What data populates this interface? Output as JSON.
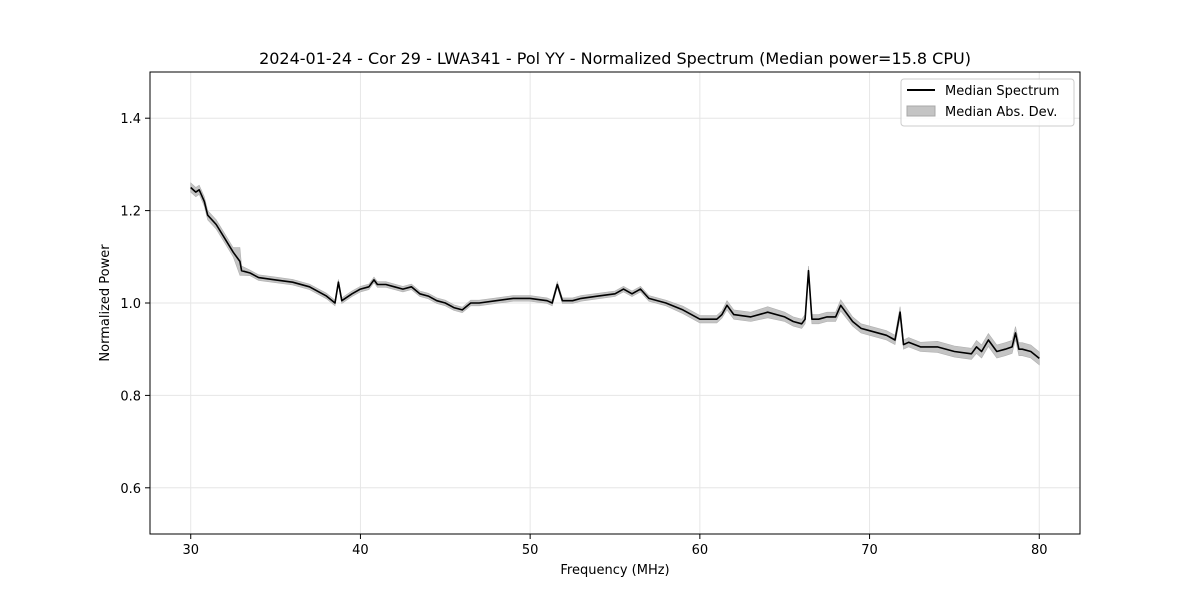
{
  "chart_data": {
    "type": "line",
    "title": "2024-01-24 - Cor 29 - LWA341 - Pol YY - Normalized Spectrum (Median power=15.8 CPU)",
    "xlabel": "Frequency (MHz)",
    "ylabel": "Normalized Power",
    "xlim": [
      27.6,
      82.4
    ],
    "ylim": [
      0.5,
      1.5
    ],
    "xticks": [
      30,
      40,
      50,
      60,
      70,
      80
    ],
    "yticks": [
      0.6,
      0.8,
      1.0,
      1.2,
      1.4
    ],
    "xtick_labels": [
      "30",
      "40",
      "50",
      "60",
      "70",
      "80"
    ],
    "ytick_labels": [
      "0.6",
      "0.8",
      "1.0",
      "1.2",
      "1.4"
    ],
    "grid": true,
    "legend": {
      "placement": "top-right",
      "entries": [
        {
          "label": "Median Spectrum",
          "kind": "line",
          "color": "#000000"
        },
        {
          "label": "Median Abs. Dev.",
          "kind": "band",
          "color": "#c4c4c4"
        }
      ]
    },
    "series": [
      {
        "name": "Median Spectrum",
        "color": "#000000",
        "x": [
          30.0,
          30.3,
          30.5,
          30.8,
          31.0,
          31.5,
          32.0,
          32.5,
          32.9,
          33.0,
          33.5,
          34.0,
          35.0,
          36.0,
          37.0,
          38.0,
          38.5,
          38.7,
          38.9,
          39.5,
          40.0,
          40.5,
          40.8,
          41.0,
          41.5,
          42.0,
          42.5,
          43.0,
          43.5,
          44.0,
          44.5,
          45.0,
          45.5,
          46.0,
          46.5,
          47.0,
          48.0,
          49.0,
          50.0,
          51.0,
          51.3,
          51.6,
          51.9,
          52.5,
          53.0,
          54.0,
          55.0,
          55.5,
          56.0,
          56.5,
          57.0,
          58.0,
          59.0,
          60.0,
          61.0,
          61.3,
          61.6,
          62.0,
          63.0,
          64.0,
          65.0,
          65.5,
          66.0,
          66.2,
          66.4,
          66.6,
          67.0,
          67.5,
          68.0,
          68.3,
          69.0,
          69.5,
          70.0,
          71.0,
          71.5,
          71.8,
          72.0,
          72.3,
          73.0,
          74.0,
          75.0,
          76.0,
          76.3,
          76.6,
          77.0,
          77.5,
          78.0,
          78.4,
          78.6,
          78.8,
          79.0,
          79.5,
          80.0
        ],
        "y": [
          1.25,
          1.24,
          1.245,
          1.22,
          1.19,
          1.17,
          1.14,
          1.11,
          1.09,
          1.07,
          1.065,
          1.055,
          1.05,
          1.045,
          1.035,
          1.015,
          1.0,
          1.045,
          1.005,
          1.02,
          1.03,
          1.035,
          1.05,
          1.04,
          1.04,
          1.035,
          1.03,
          1.035,
          1.02,
          1.015,
          1.005,
          1.0,
          0.99,
          0.985,
          1.0,
          1.0,
          1.005,
          1.01,
          1.01,
          1.005,
          1.0,
          1.04,
          1.005,
          1.005,
          1.01,
          1.015,
          1.02,
          1.03,
          1.02,
          1.03,
          1.01,
          1.0,
          0.985,
          0.965,
          0.965,
          0.975,
          0.995,
          0.975,
          0.97,
          0.98,
          0.97,
          0.96,
          0.955,
          0.965,
          1.07,
          0.965,
          0.965,
          0.97,
          0.97,
          0.995,
          0.96,
          0.945,
          0.94,
          0.93,
          0.92,
          0.98,
          0.91,
          0.915,
          0.905,
          0.905,
          0.895,
          0.89,
          0.905,
          0.895,
          0.92,
          0.895,
          0.9,
          0.905,
          0.935,
          0.9,
          0.9,
          0.895,
          0.88
        ]
      },
      {
        "name": "Median Abs. Dev.",
        "color": "#c4c4c4",
        "halfwidth": [
          0.01,
          0.01,
          0.01,
          0.01,
          0.01,
          0.01,
          0.01,
          0.01,
          0.03,
          0.01,
          0.006,
          0.006,
          0.006,
          0.006,
          0.006,
          0.006,
          0.006,
          0.006,
          0.006,
          0.006,
          0.006,
          0.006,
          0.006,
          0.006,
          0.006,
          0.006,
          0.006,
          0.006,
          0.006,
          0.006,
          0.006,
          0.006,
          0.006,
          0.006,
          0.006,
          0.006,
          0.006,
          0.006,
          0.006,
          0.006,
          0.006,
          0.006,
          0.006,
          0.006,
          0.006,
          0.006,
          0.006,
          0.006,
          0.006,
          0.006,
          0.006,
          0.006,
          0.008,
          0.008,
          0.008,
          0.008,
          0.01,
          0.01,
          0.01,
          0.012,
          0.01,
          0.01,
          0.01,
          0.01,
          0.01,
          0.01,
          0.01,
          0.01,
          0.01,
          0.012,
          0.01,
          0.01,
          0.01,
          0.01,
          0.01,
          0.012,
          0.01,
          0.01,
          0.01,
          0.012,
          0.012,
          0.012,
          0.014,
          0.014,
          0.014,
          0.014,
          0.014,
          0.014,
          0.014,
          0.014,
          0.014,
          0.014,
          0.014
        ]
      }
    ]
  }
}
